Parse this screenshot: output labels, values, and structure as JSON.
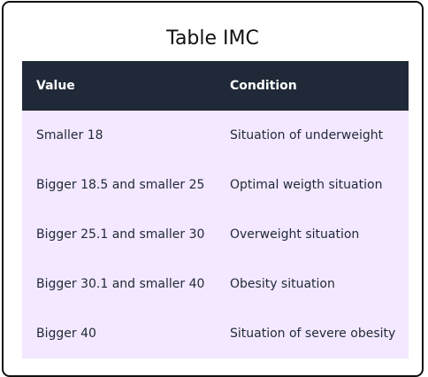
{
  "title": "Table IMC",
  "table": {
    "headers": [
      "Value",
      "Condition"
    ],
    "rows": [
      [
        "Smaller 18",
        "Situation of underweight"
      ],
      [
        "Bigger 18.5 and smaller 25",
        "Optimal weigth situation"
      ],
      [
        "Bigger 25.1 and smaller 30",
        "Overweight situation"
      ],
      [
        "Bigger 30.1 and smaller 40",
        "Obesity situation"
      ],
      [
        "Bigger 40",
        "Situation of severe obesity"
      ]
    ]
  },
  "colors": {
    "header_bg": "#1f2937",
    "row_bg": "#f3e8ff",
    "border": "#111111"
  }
}
